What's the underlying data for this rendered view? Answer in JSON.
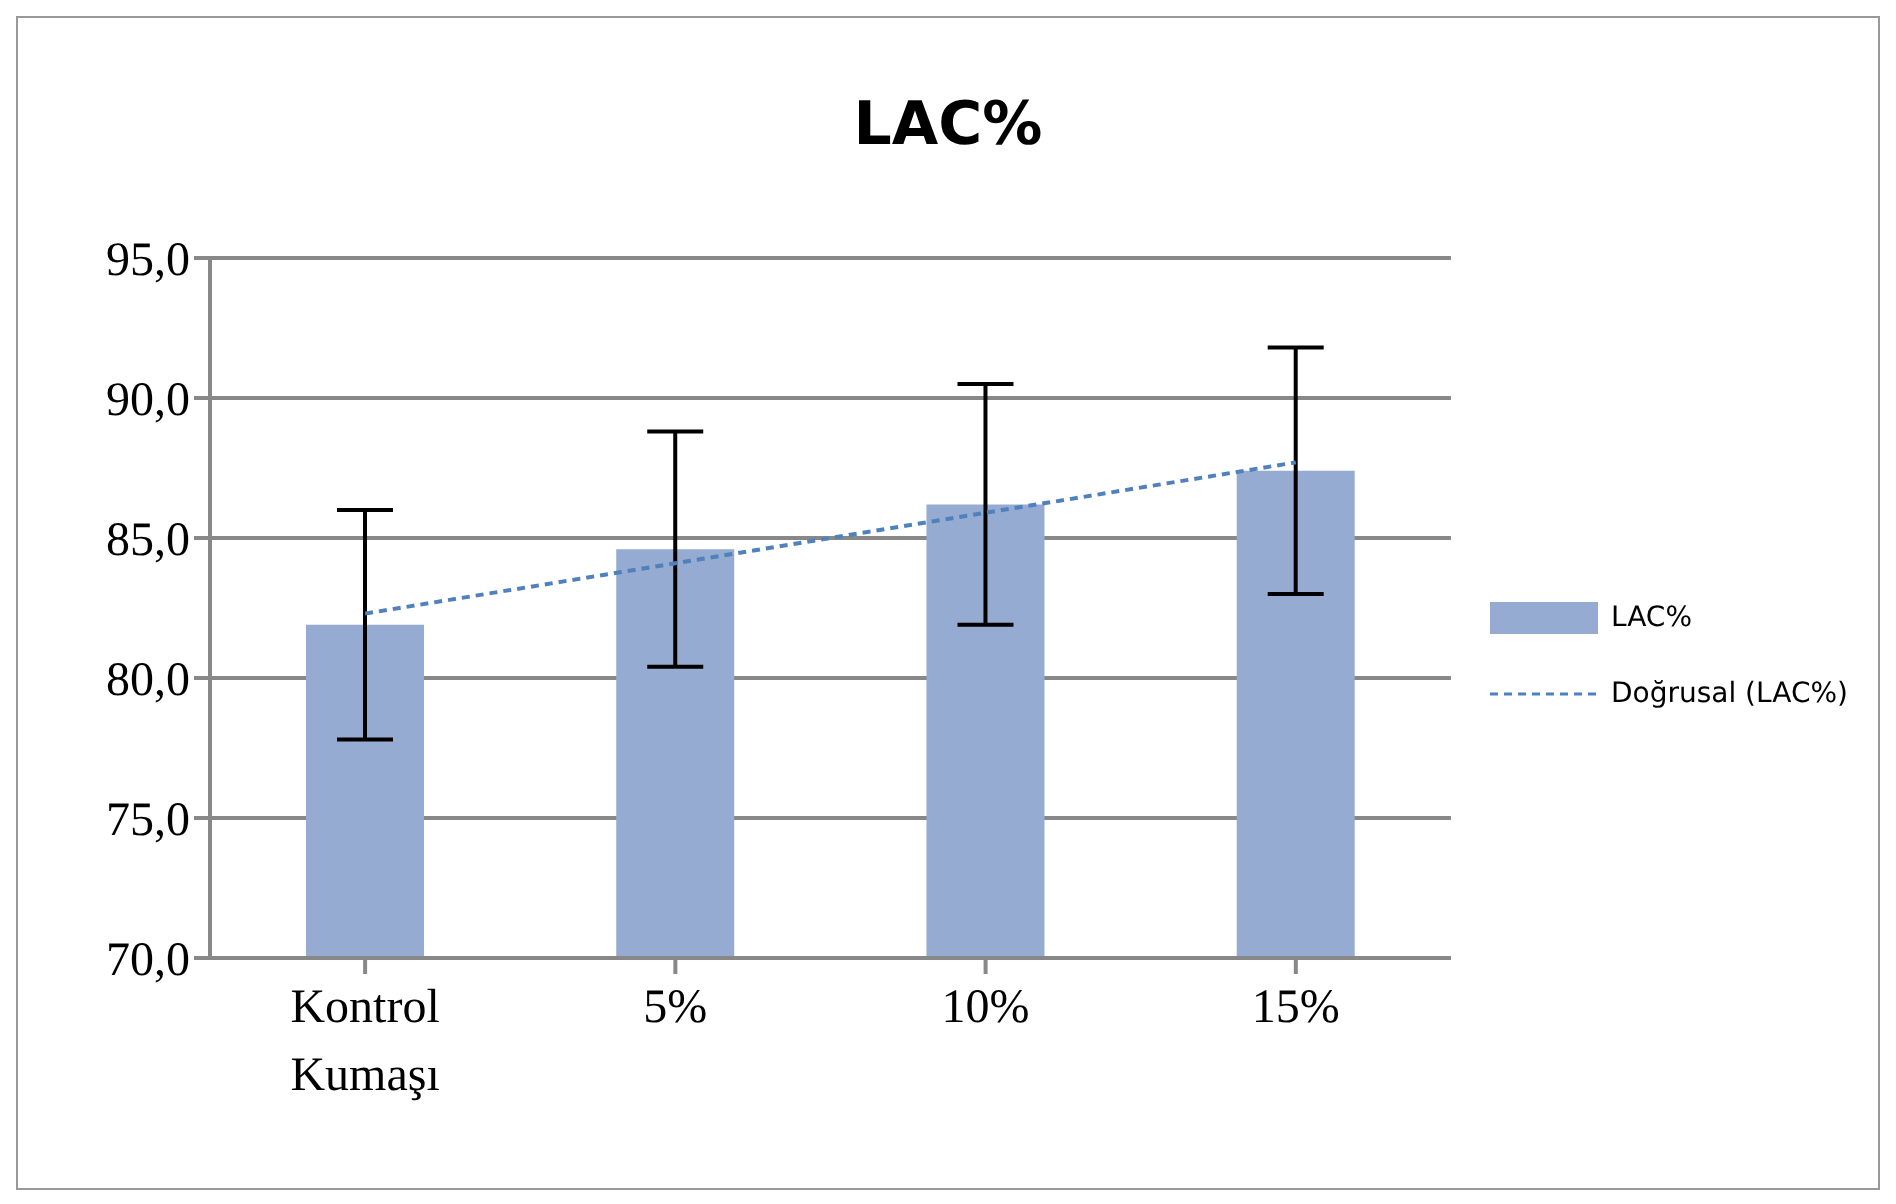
{
  "chart_data": {
    "type": "bar",
    "title": "LAC%",
    "categories": [
      "Kontrol Kumaşı",
      "5%",
      "10%",
      "15%"
    ],
    "series": [
      {
        "name": "LAC%",
        "color": "#95abd1",
        "values": [
          81.9,
          84.6,
          86.2,
          87.4
        ],
        "errors": [
          4.1,
          4.2,
          4.3,
          4.4
        ]
      },
      {
        "name": "Doğrusal (LAC%)",
        "type": "line",
        "color": "#4f81bd",
        "x": [
          "Kontrol Kumaşı",
          "15%"
        ],
        "values": [
          82.3,
          87.7
        ],
        "line_style": "dashed",
        "marker": "none"
      }
    ],
    "ylim": [
      70,
      95
    ],
    "yticks": [
      {
        "value": 70,
        "label": "70,0"
      },
      {
        "value": 75,
        "label": "75,0"
      },
      {
        "value": 80,
        "label": "80,0"
      },
      {
        "value": 85,
        "label": "85,0"
      },
      {
        "value": 90,
        "label": "90,0"
      },
      {
        "value": 95,
        "label": "95,0"
      }
    ],
    "grid": "y",
    "legend": "right"
  }
}
